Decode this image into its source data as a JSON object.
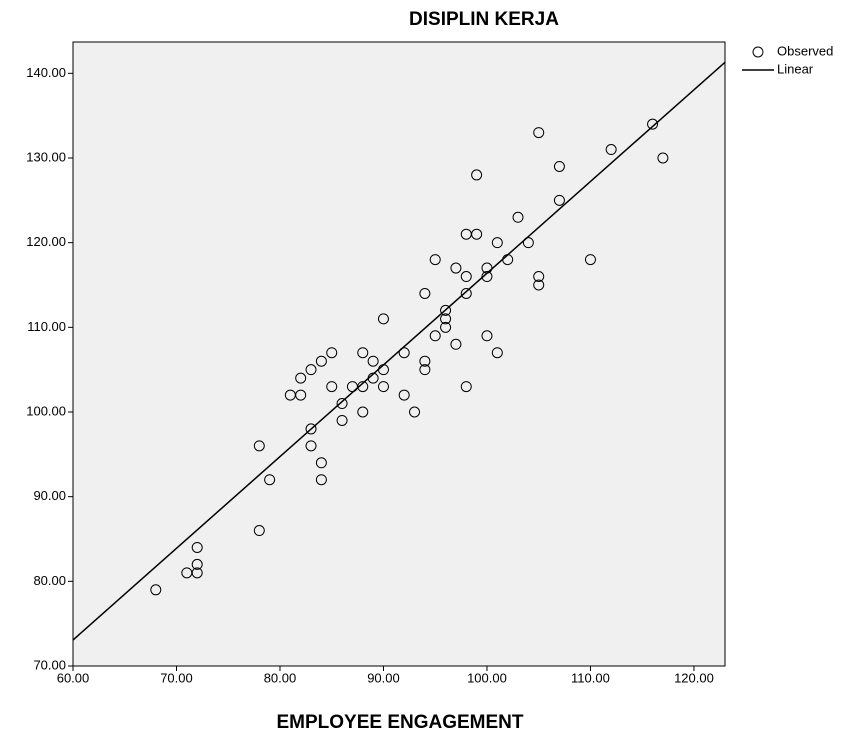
{
  "chart_data": {
    "type": "scatter",
    "title": "DISIPLIN KERJA",
    "xlabel": "EMPLOYEE ENGAGEMENT",
    "xlim": [
      60,
      123
    ],
    "ylim": [
      70,
      143.7
    ],
    "xticks": [
      {
        "value": 60,
        "label": "60.00"
      },
      {
        "value": 70,
        "label": "70.00"
      },
      {
        "value": 80,
        "label": "80.00"
      },
      {
        "value": 90,
        "label": "90.00"
      },
      {
        "value": 100,
        "label": "100.00"
      },
      {
        "value": 110,
        "label": "110.00"
      },
      {
        "value": 120,
        "label": "120.00"
      }
    ],
    "yticks": [
      {
        "value": 70,
        "label": "70.00"
      },
      {
        "value": 80,
        "label": "80.00"
      },
      {
        "value": 90,
        "label": "90.00"
      },
      {
        "value": 100,
        "label": "100.00"
      },
      {
        "value": 110,
        "label": "110.00"
      },
      {
        "value": 120,
        "label": "120.00"
      },
      {
        "value": 130,
        "label": "130.00"
      },
      {
        "value": 140,
        "label": "140.00"
      }
    ],
    "series": [
      {
        "name": "Observed",
        "type": "scatter",
        "color": "#000000",
        "x": [
          68,
          71,
          72,
          72,
          72,
          78,
          78,
          79,
          81,
          82,
          82,
          83,
          83,
          83,
          84,
          84,
          84,
          85,
          85,
          86,
          86,
          87,
          88,
          88,
          88,
          89,
          89,
          90,
          90,
          90,
          92,
          92,
          93,
          94,
          94,
          94,
          95,
          95,
          96,
          96,
          96,
          97,
          97,
          98,
          98,
          98,
          98,
          99,
          99,
          100,
          100,
          100,
          101,
          101,
          102,
          103,
          104,
          105,
          105,
          105,
          107,
          107,
          110,
          112,
          116,
          117
        ],
        "values": [
          79,
          81,
          81,
          82,
          84,
          86,
          96,
          92,
          102,
          102,
          104,
          105,
          98,
          96,
          106,
          94,
          92,
          107,
          103,
          101,
          99,
          103,
          107,
          103,
          100,
          106,
          104,
          111,
          105,
          103,
          107,
          102,
          100,
          114,
          106,
          105,
          118,
          109,
          112,
          111,
          110,
          117,
          108,
          121,
          116,
          114,
          103,
          128,
          121,
          117,
          116,
          109,
          120,
          107,
          118,
          123,
          120,
          133,
          116,
          115,
          129,
          125,
          118,
          131,
          134,
          130
        ]
      },
      {
        "name": "Linear",
        "type": "line",
        "color": "#000000",
        "x": [
          60,
          123
        ],
        "values": [
          73.07,
          141.3
        ]
      }
    ],
    "legend": "outside-right"
  }
}
